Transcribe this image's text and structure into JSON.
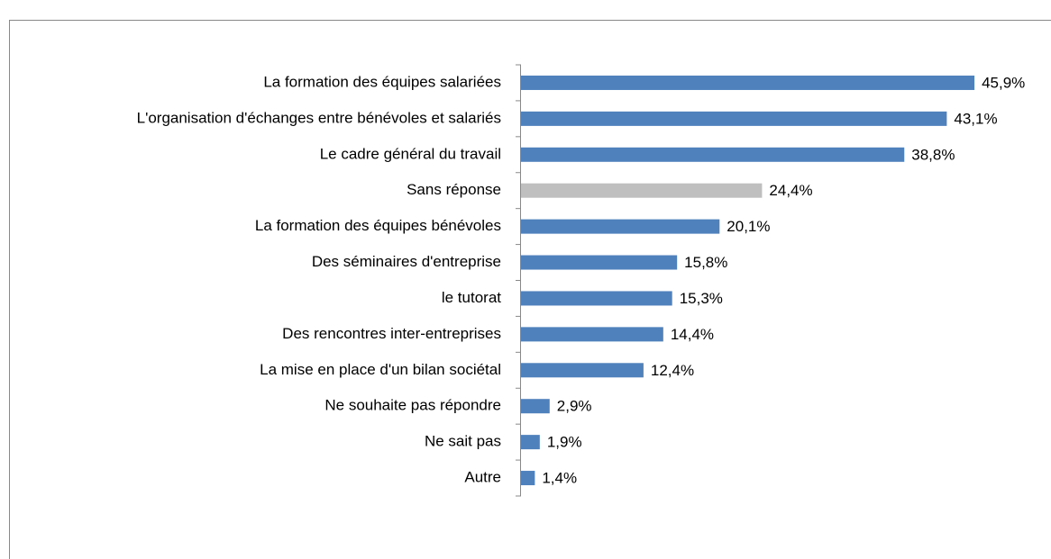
{
  "chart_data": {
    "type": "bar",
    "orientation": "horizontal",
    "categories": [
      "La formation des équipes salariées",
      "L'organisation d'échanges entre bénévoles et salariés",
      "Le cadre général du travail",
      "Sans réponse",
      "La formation des équipes bénévoles",
      "Des séminaires d'entreprise",
      "le tutorat",
      "Des rencontres inter-entreprises",
      "La mise en place d'un bilan sociétal",
      "Ne souhaite pas répondre",
      "Ne sait pas",
      "Autre"
    ],
    "values": [
      45.9,
      43.1,
      38.8,
      24.4,
      20.1,
      15.8,
      15.3,
      14.4,
      12.4,
      2.9,
      1.9,
      1.4
    ],
    "value_labels": [
      "45,9%",
      "43,1%",
      "38,8%",
      "24,4%",
      "20,1%",
      "15,8%",
      "15,3%",
      "14,4%",
      "12,4%",
      "2,9%",
      "1,9%",
      "1,4%"
    ],
    "colors": [
      "#4f81bd",
      "#4f81bd",
      "#4f81bd",
      "#bfbfbf",
      "#4f81bd",
      "#4f81bd",
      "#4f81bd",
      "#4f81bd",
      "#4f81bd",
      "#4f81bd",
      "#4f81bd",
      "#4f81bd"
    ],
    "xlim": [
      0,
      50
    ]
  }
}
